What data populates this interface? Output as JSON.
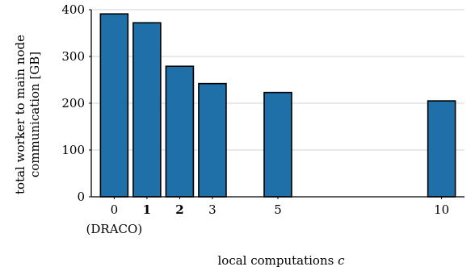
{
  "chart_data": {
    "type": "bar",
    "x": [
      0,
      1,
      2,
      3,
      5,
      10
    ],
    "values": [
      391,
      372,
      279,
      242,
      223,
      205
    ],
    "bold_ticks": [
      1,
      2
    ],
    "xtick_sublabel": {
      "x": 0,
      "text": "(DRACO)"
    },
    "xlabel": "local computations ",
    "xlabel_var": "c",
    "ylabel_line1": "total worker to main node",
    "ylabel_line2": "communication [GB]",
    "yticks": [
      0,
      100,
      200,
      300,
      400
    ],
    "ylim": [
      0,
      400
    ],
    "xlim": [
      -0.7,
      10.7
    ],
    "grid": true,
    "bar_color": "#1f6fa8"
  }
}
